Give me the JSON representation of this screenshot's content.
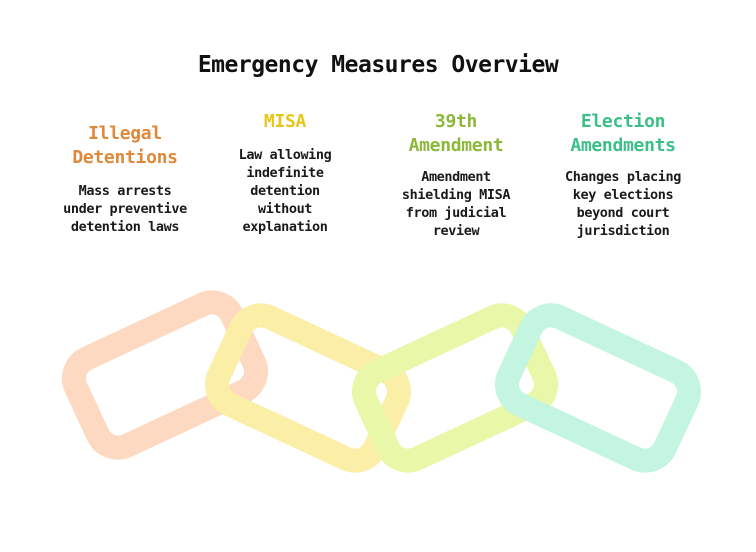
{
  "title": "Emergency Measures Overview",
  "columns": [
    {
      "heading_lines": [
        "Illegal",
        "Detentions"
      ],
      "description_lines": [
        "Mass arrests",
        "under preventive",
        "detention laws"
      ],
      "color": "#e0883a"
    },
    {
      "heading_lines": [
        "MISA"
      ],
      "description_lines": [
        "Law allowing",
        "indefinite",
        "detention",
        "without",
        "explanation"
      ],
      "color": "#e6c619"
    },
    {
      "heading_lines": [
        "39th",
        "Amendment"
      ],
      "description_lines": [
        "Amendment",
        "shielding MISA",
        "from judicial",
        "review"
      ],
      "color": "#8db83a"
    },
    {
      "heading_lines": [
        "Election",
        "Amendments"
      ],
      "description_lines": [
        "Changes placing",
        "key elections",
        "beyond court",
        "jurisdiction"
      ],
      "color": "#3cc088"
    }
  ],
  "chain": {
    "link_colors": [
      "#fcd9c0",
      "#fbeea6",
      "#e8f7a8",
      "#c4f5e0"
    ],
    "link_icons": [
      "chain-link-icon",
      "chain-link-icon",
      "chain-link-icon",
      "chain-link-icon"
    ]
  }
}
